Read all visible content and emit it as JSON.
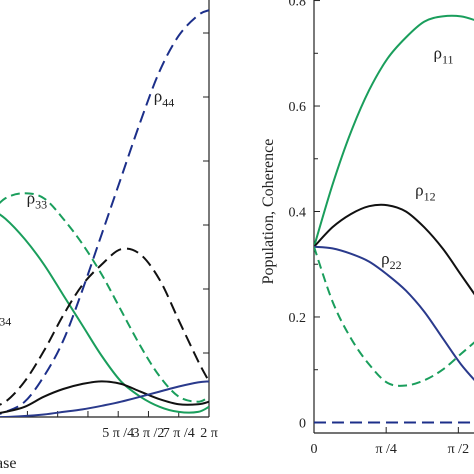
{
  "colors": {
    "green": "#1a9e5c",
    "black": "#111111",
    "blue": "#2a3a8c",
    "navy_dash": "#1c2f8a"
  },
  "chart_data": [
    {
      "type": "line",
      "title": "",
      "xlabel": "ase",
      "ylabel": "",
      "xlim": [
        0.6,
        6.2832
      ],
      "ylim": [
        0.0,
        0.82
      ],
      "x_ticks": [
        {
          "value": 3.927,
          "label": "5 π /4"
        },
        {
          "value": 4.712,
          "label": "3 π /2"
        },
        {
          "value": 5.498,
          "label": "7 π /4"
        },
        {
          "value": 6.283,
          "label": "2 π"
        }
      ],
      "annotations": [
        {
          "text": "ρ",
          "sub": "44",
          "x": 4.85,
          "y": 0.62
        },
        {
          "text": "ρ",
          "sub": "33",
          "x": 1.55,
          "y": 0.42
        },
        {
          "text": "ρ",
          "sub": "34",
          "x": 0.62,
          "y": 0.19
        }
      ],
      "series": [
        {
          "color": "#1c2f8a",
          "dash": "long",
          "x": [
            0.6,
            1.0,
            1.5,
            2.0,
            2.5,
            3.0,
            3.5,
            4.0,
            4.5,
            5.0,
            5.5,
            6.0,
            6.2832
          ],
          "y": [
            0.001,
            0.01,
            0.03,
            0.08,
            0.15,
            0.25,
            0.36,
            0.47,
            0.58,
            0.68,
            0.75,
            0.79,
            0.8
          ]
        },
        {
          "color": "#1a9e5c",
          "dash": "medium",
          "x": [
            0.6,
            1.0,
            1.5,
            2.0,
            2.5,
            3.0,
            3.5,
            4.0,
            4.5,
            5.0,
            5.5,
            6.0,
            6.2832
          ],
          "y": [
            0.4,
            0.43,
            0.44,
            0.43,
            0.39,
            0.34,
            0.28,
            0.21,
            0.14,
            0.08,
            0.04,
            0.03,
            0.04
          ]
        },
        {
          "color": "#1a9e5c",
          "dash": "solid",
          "x": [
            0.6,
            1.0,
            1.5,
            2.0,
            2.5,
            3.0,
            3.5,
            4.0,
            4.5,
            5.0,
            5.5,
            6.0,
            6.2832
          ],
          "y": [
            0.41,
            0.39,
            0.35,
            0.3,
            0.24,
            0.18,
            0.12,
            0.07,
            0.04,
            0.02,
            0.01,
            0.01,
            0.02
          ]
        },
        {
          "color": "#111111",
          "dash": "long",
          "x": [
            0.6,
            1.0,
            1.5,
            2.0,
            2.5,
            3.0,
            3.5,
            4.0,
            4.5,
            5.0,
            5.5,
            6.0,
            6.2832
          ],
          "y": [
            0.02,
            0.03,
            0.07,
            0.13,
            0.2,
            0.26,
            0.3,
            0.33,
            0.32,
            0.27,
            0.19,
            0.11,
            0.07
          ]
        },
        {
          "color": "#111111",
          "dash": "solid",
          "x": [
            0.6,
            1.0,
            1.5,
            2.0,
            2.5,
            3.0,
            3.5,
            4.0,
            4.5,
            5.0,
            5.5,
            6.0,
            6.2832
          ],
          "y": [
            0.005,
            0.01,
            0.02,
            0.04,
            0.055,
            0.065,
            0.07,
            0.065,
            0.05,
            0.035,
            0.025,
            0.025,
            0.03
          ]
        },
        {
          "color": "#2a3a8c",
          "dash": "solid",
          "x": [
            0.6,
            1.0,
            1.5,
            2.0,
            2.5,
            3.0,
            3.5,
            4.0,
            4.5,
            5.0,
            5.5,
            6.0,
            6.2832
          ],
          "y": [
            0.0,
            0.0,
            0.002,
            0.005,
            0.01,
            0.015,
            0.022,
            0.03,
            0.04,
            0.05,
            0.06,
            0.068,
            0.07
          ]
        }
      ]
    },
    {
      "type": "line",
      "title": "",
      "xlabel": "",
      "ylabel": "Population, Coherence",
      "xlim": [
        0,
        1.85
      ],
      "ylim": [
        -0.02,
        0.82
      ],
      "x_ticks": [
        {
          "value": 0,
          "label": "0"
        },
        {
          "value": 0.7854,
          "label": "π /4"
        },
        {
          "value": 1.5708,
          "label": "π /2"
        }
      ],
      "y_ticks": [
        {
          "value": 0,
          "label": "0"
        },
        {
          "value": 0.2,
          "label": "0.2"
        },
        {
          "value": 0.4,
          "label": "0.4"
        },
        {
          "value": 0.6,
          "label": "0.6"
        },
        {
          "value": 0.8,
          "label": "0.8"
        }
      ],
      "annotations": [
        {
          "text": "ρ",
          "sub": "11",
          "x": 1.3,
          "y": 0.69
        },
        {
          "text": "ρ",
          "sub": "12",
          "x": 1.1,
          "y": 0.43
        },
        {
          "text": "ρ",
          "sub": "22",
          "x": 0.73,
          "y": 0.3
        }
      ],
      "series": [
        {
          "color": "#1a9e5c",
          "dash": "solid",
          "x": [
            0,
            0.2,
            0.4,
            0.6,
            0.8,
            1.0,
            1.2,
            1.4,
            1.6,
            1.8
          ],
          "y": [
            0.333,
            0.45,
            0.55,
            0.63,
            0.69,
            0.73,
            0.76,
            0.77,
            0.77,
            0.76
          ]
        },
        {
          "color": "#111111",
          "dash": "solid",
          "x": [
            0,
            0.2,
            0.4,
            0.6,
            0.8,
            1.0,
            1.2,
            1.4,
            1.6,
            1.8
          ],
          "y": [
            0.333,
            0.37,
            0.395,
            0.41,
            0.412,
            0.4,
            0.37,
            0.33,
            0.28,
            0.23
          ]
        },
        {
          "color": "#2a3a8c",
          "dash": "solid",
          "x": [
            0,
            0.2,
            0.4,
            0.6,
            0.8,
            1.0,
            1.2,
            1.4,
            1.6,
            1.8
          ],
          "y": [
            0.333,
            0.33,
            0.32,
            0.305,
            0.28,
            0.25,
            0.21,
            0.16,
            0.11,
            0.07
          ]
        },
        {
          "color": "#1a9e5c",
          "dash": "medium",
          "x": [
            0,
            0.2,
            0.4,
            0.6,
            0.8,
            1.0,
            1.2,
            1.4,
            1.6,
            1.8
          ],
          "y": [
            0.333,
            0.23,
            0.16,
            0.11,
            0.075,
            0.07,
            0.08,
            0.1,
            0.13,
            0.16
          ]
        },
        {
          "color": "#1c2f8a",
          "dash": "long",
          "x": [
            0,
            0.2,
            0.4,
            0.6,
            0.8,
            1.0,
            1.2,
            1.4,
            1.6,
            1.8
          ],
          "y": [
            0.0,
            0.0,
            0.0,
            0.0,
            0.0,
            0.0,
            0.0,
            0.0,
            0.0,
            0.0
          ]
        }
      ]
    }
  ]
}
